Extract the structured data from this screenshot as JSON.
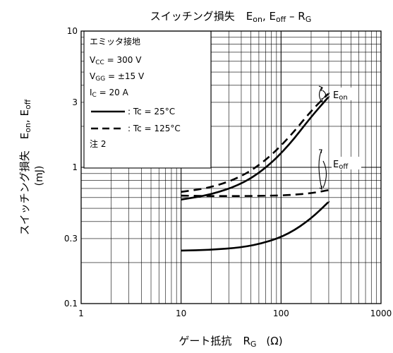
{
  "chart_data": {
    "type": "line",
    "title": {
      "main": "スイッチング損失",
      "e": "E",
      "on": "on",
      "sep": ", E",
      "off": "off",
      "dash": " – R",
      "g": "G"
    },
    "xlabel": {
      "main": "ゲート抵抗",
      "r": "R",
      "g": "G",
      "unit": "(Ω)"
    },
    "ylabel": {
      "main": "スイッチング損失",
      "e": "E",
      "on": "on",
      "sep": ", E",
      "off": "off",
      "unit": "(mJ)"
    },
    "x_scale": "log",
    "y_scale": "log",
    "xlim": [
      1,
      1000
    ],
    "ylim": [
      0.1,
      10
    ],
    "x_ticks": [
      {
        "value": 1,
        "label": "1"
      },
      {
        "value": 10,
        "label": "10"
      },
      {
        "value": 100,
        "label": "100"
      },
      {
        "value": 1000,
        "label": "1000"
      }
    ],
    "y_ticks": [
      {
        "value": 0.1,
        "label": "0.1"
      },
      {
        "value": 0.3,
        "label": "0.3"
      },
      {
        "value": 1,
        "label": "1"
      },
      {
        "value": 3,
        "label": "3"
      },
      {
        "value": 10,
        "label": "10"
      }
    ],
    "grid": true,
    "conditions": {
      "title": "エミッタ接地",
      "vcc": {
        "v": "V",
        "sub": "CC",
        "rest": " = 300 V"
      },
      "vgg": {
        "v": "V",
        "sub": "GG",
        "rest": " = ±15 V"
      },
      "ic": {
        "v": "I",
        "sub": "C",
        "rest": " = 20 A"
      },
      "solid_label": ": Tc = 25°C",
      "dashed_label": ": Tc = 125°C",
      "note": "注 2"
    },
    "curve_labels": {
      "on": {
        "e": "E",
        "sub": "on"
      },
      "off": {
        "e": "E",
        "sub": "off"
      }
    },
    "series": [
      {
        "key": "eon_25",
        "style": "solid",
        "x": [
          10,
          20,
          40,
          70,
          120,
          200,
          300
        ],
        "y": [
          0.58,
          0.63,
          0.75,
          0.98,
          1.45,
          2.35,
          3.3
        ]
      },
      {
        "key": "eon_125",
        "style": "dashed",
        "x": [
          10,
          20,
          40,
          70,
          120,
          200,
          300
        ],
        "y": [
          0.66,
          0.71,
          0.85,
          1.12,
          1.65,
          2.6,
          3.5
        ]
      },
      {
        "key": "eoff_25",
        "style": "solid",
        "x": [
          10,
          20,
          40,
          70,
          120,
          200,
          300
        ],
        "y": [
          0.245,
          0.248,
          0.258,
          0.28,
          0.325,
          0.42,
          0.56
        ]
      },
      {
        "key": "eoff_125",
        "style": "dashed",
        "x": [
          10,
          20,
          40,
          70,
          120,
          200,
          300
        ],
        "y": [
          0.62,
          0.615,
          0.615,
          0.618,
          0.625,
          0.645,
          0.68
        ]
      }
    ]
  }
}
